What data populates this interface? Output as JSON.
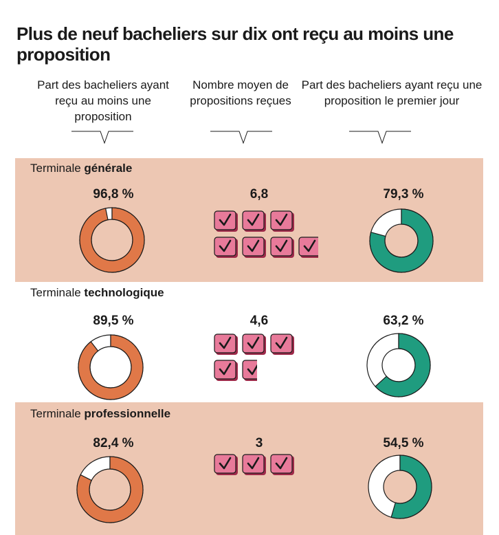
{
  "title": "Plus de neuf bacheliers sur dix ont reçu au moins une proposition",
  "columns": [
    "Part des bacheliers ayant reçu au moins une proposition",
    "Nombre moyen de propositions reçues",
    "Part des bacheliers ayant reçu une proposition le premier jour"
  ],
  "rows": [
    {
      "prefix": "Terminale ",
      "name": "générale",
      "pct_any": 96.8,
      "pct_any_label": "96,8 %",
      "avg": 6.8,
      "avg_label": "6,8",
      "pct_first": 79.3,
      "pct_first_label": "79,3 %"
    },
    {
      "prefix": "Terminale ",
      "name": "technologique",
      "pct_any": 89.5,
      "pct_any_label": "89,5 %",
      "avg": 4.6,
      "avg_label": "4,6",
      "pct_first": 63.2,
      "pct_first_label": "63,2 %"
    },
    {
      "prefix": "Terminale ",
      "name": "professionnelle",
      "pct_any": 82.4,
      "pct_any_label": "82,4 %",
      "avg": 3,
      "avg_label": "3",
      "pct_first": 54.5,
      "pct_first_label": "54,5 %"
    }
  ],
  "chart_data": {
    "type": "donut",
    "title": "Plus de neuf bacheliers sur dix ont reçu au moins une proposition",
    "categories": [
      "Terminale générale",
      "Terminale technologique",
      "Terminale professionnelle"
    ],
    "series": [
      {
        "name": "Part des bacheliers ayant reçu au moins une proposition",
        "values": [
          96.8,
          89.5,
          82.4
        ],
        "unit": "%"
      },
      {
        "name": "Nombre moyen de propositions reçues",
        "values": [
          6.8,
          4.6,
          3
        ]
      },
      {
        "name": "Part des bacheliers ayant reçu une proposition le premier jour",
        "values": [
          79.3,
          63.2,
          54.5
        ],
        "unit": "%"
      }
    ]
  },
  "colors": {
    "band": "#edc7b3",
    "orange": "#e07848",
    "green": "#1f9c7f",
    "check_fill": "#e87a9a",
    "check_shadow": "#9e2a4a",
    "outline": "#1a1a1a"
  }
}
